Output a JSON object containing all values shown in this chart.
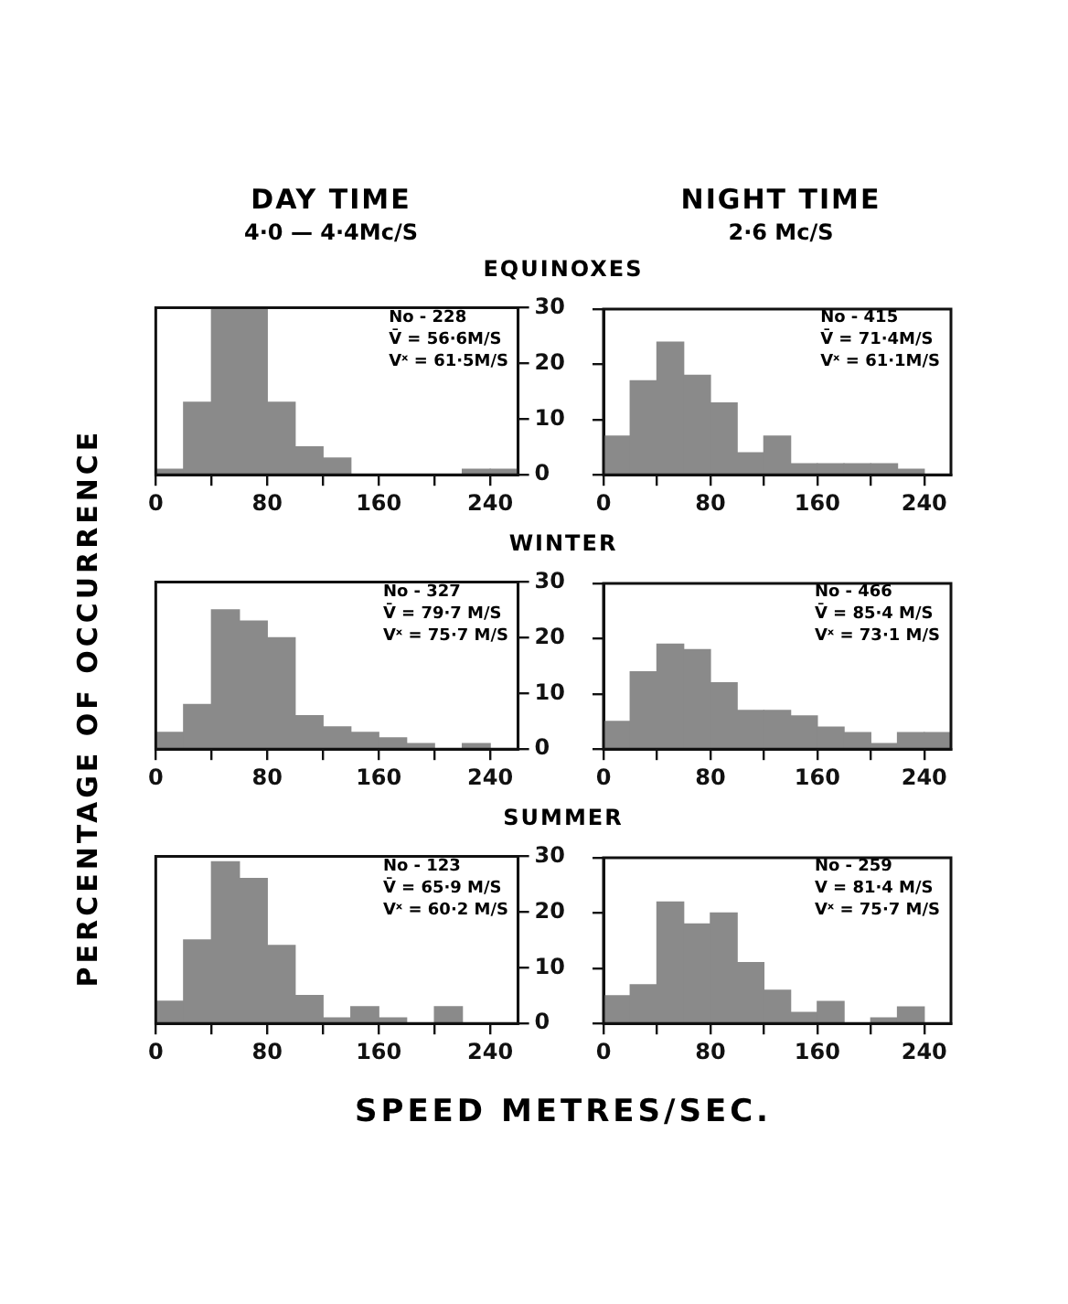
{
  "chart_data": [
    {
      "type": "histogram",
      "title": "DAY TIME",
      "subtitle": "4·0 — 4·4Mc/S",
      "annotations": [
        "EQUINOXES",
        "No - 228",
        "V̄ = 56·6M/S",
        "Vˣ = 61·5M/S"
      ],
      "color": "#8a8a8a",
      "bins": [
        0,
        20,
        40,
        60,
        80,
        100,
        120,
        140,
        160,
        180,
        200,
        220,
        240,
        260
      ],
      "values": [
        1,
        13,
        30,
        30,
        13,
        5,
        3,
        0,
        0,
        0,
        0,
        1,
        1
      ],
      "xlim": [
        0,
        260
      ],
      "xticks": [
        0,
        {
          "value": 40,
          "label": null
        },
        80,
        {
          "value": 120,
          "label": null
        },
        160,
        {
          "value": 200,
          "label": null
        },
        240
      ],
      "ylim": [
        0,
        30
      ],
      "yticks": [
        0,
        10,
        20,
        30
      ]
    },
    {
      "type": "histogram",
      "title": "NIGHT TIME",
      "subtitle": "2·6 Mc/S",
      "annotations": [
        "No - 415",
        "V̄ = 71·4M/S",
        "Vˣ = 61·1M/S"
      ],
      "color": "#8a8a8a",
      "bins": [
        0,
        20,
        40,
        60,
        80,
        100,
        120,
        140,
        160,
        180,
        200,
        220,
        240
      ],
      "values": [
        7,
        17,
        24,
        18,
        13,
        4,
        7,
        2,
        2,
        2,
        2,
        1
      ],
      "xlim": [
        0,
        260
      ],
      "xticks": [
        0,
        {
          "value": 40,
          "label": null
        },
        80,
        {
          "value": 120,
          "label": null
        },
        160,
        {
          "value": 200,
          "label": null
        },
        240
      ],
      "ylim": [
        0,
        30
      ],
      "yticks": [
        0,
        10,
        20,
        30
      ],
      "tick_labels": "x"
    },
    {
      "type": "histogram",
      "ylabel": "PERCENTAGE OF OCCURRENCE",
      "annotations": [
        "WINTER",
        "No - 327",
        "V̄ = 79·7 M/S",
        "Vˣ = 75·7 M/S"
      ],
      "color": "#8a8a8a",
      "bins": [
        0,
        20,
        40,
        60,
        80,
        100,
        120,
        140,
        160,
        180,
        200,
        220,
        240
      ],
      "values": [
        3,
        8,
        25,
        23,
        20,
        6,
        4,
        3,
        2,
        1,
        0,
        1
      ],
      "xlim": [
        0,
        260
      ],
      "xticks": [
        0,
        {
          "value": 40,
          "label": null
        },
        80,
        {
          "value": 120,
          "label": null
        },
        160,
        {
          "value": 200,
          "label": null
        },
        240
      ],
      "ylim": [
        0,
        30
      ],
      "yticks": [
        0,
        10,
        20,
        30
      ]
    },
    {
      "type": "histogram",
      "annotations": [
        "No - 466",
        "V̄ = 85·4 M/S",
        "Vˣ = 73·1 M/S"
      ],
      "color": "#8a8a8a",
      "bins": [
        0,
        20,
        40,
        60,
        80,
        100,
        120,
        140,
        160,
        180,
        200,
        220,
        240,
        260
      ],
      "values": [
        5,
        14,
        19,
        18,
        12,
        7,
        7,
        6,
        4,
        3,
        1,
        3,
        3
      ],
      "xlim": [
        0,
        260
      ],
      "xticks": [
        0,
        {
          "value": 40,
          "label": null
        },
        80,
        {
          "value": 120,
          "label": null
        },
        160,
        {
          "value": 200,
          "label": null
        },
        240
      ],
      "ylim": [
        0,
        30
      ],
      "yticks": [
        0,
        10,
        20,
        30
      ],
      "tick_labels": "x"
    },
    {
      "type": "histogram",
      "xlabel": "SPEED METRES/SEC.",
      "annotations": [
        "SUMMER",
        "No - 123",
        "V̄ = 65·9 M/S",
        "Vˣ = 60·2 M/S"
      ],
      "color": "#8a8a8a",
      "bins": [
        0,
        20,
        40,
        60,
        80,
        100,
        120,
        140,
        160,
        180,
        200,
        220
      ],
      "values": [
        4,
        15,
        29,
        26,
        14,
        5,
        1,
        3,
        1,
        0,
        3
      ],
      "xlim": [
        0,
        260
      ],
      "xticks": [
        0,
        {
          "value": 40,
          "label": null
        },
        80,
        {
          "value": 120,
          "label": null
        },
        160,
        {
          "value": 200,
          "label": null
        },
        240
      ],
      "ylim": [
        0,
        30
      ],
      "yticks": [
        0,
        10,
        20,
        30
      ]
    },
    {
      "type": "histogram",
      "annotations": [
        "No - 259",
        "V = 81·4 M/S",
        "Vˣ = 75·7 M/S"
      ],
      "color": "#8a8a8a",
      "bins": [
        0,
        20,
        40,
        60,
        80,
        100,
        120,
        140,
        160,
        180,
        200,
        220,
        240
      ],
      "values": [
        5,
        7,
        22,
        18,
        20,
        11,
        6,
        2,
        4,
        0,
        1,
        3
      ],
      "xlim": [
        0,
        260
      ],
      "xticks": [
        0,
        {
          "value": 40,
          "label": null
        },
        80,
        {
          "value": 120,
          "label": null
        },
        160,
        {
          "value": 200,
          "label": null
        },
        240
      ],
      "ylim": [
        0,
        30
      ],
      "yticks": [
        0,
        10,
        20,
        30
      ],
      "tick_labels": "x"
    }
  ]
}
